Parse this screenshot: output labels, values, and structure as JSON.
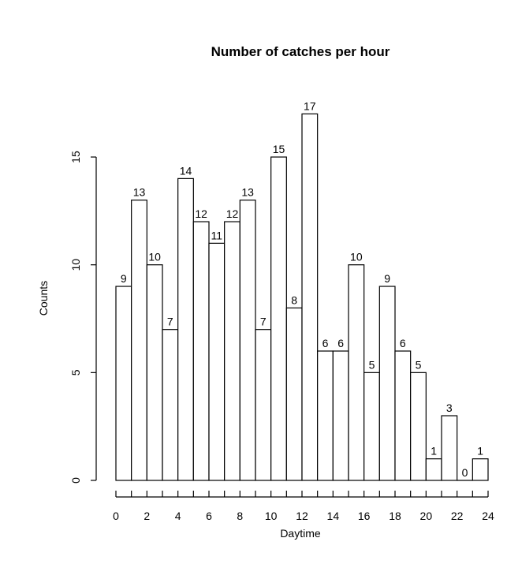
{
  "chart_data": {
    "type": "bar",
    "title": "Number of catches per hour",
    "xlabel": "Daytime",
    "ylabel": "Counts",
    "bins": [
      [
        0,
        1
      ],
      [
        1,
        2
      ],
      [
        2,
        3
      ],
      [
        3,
        4
      ],
      [
        4,
        5
      ],
      [
        5,
        6
      ],
      [
        6,
        7
      ],
      [
        7,
        8
      ],
      [
        8,
        9
      ],
      [
        9,
        10
      ],
      [
        10,
        11
      ],
      [
        11,
        12
      ],
      [
        12,
        13
      ],
      [
        13,
        14
      ],
      [
        14,
        15
      ],
      [
        15,
        16
      ],
      [
        16,
        17
      ],
      [
        17,
        18
      ],
      [
        18,
        19
      ],
      [
        19,
        20
      ],
      [
        20,
        21
      ],
      [
        21,
        22
      ],
      [
        22,
        23
      ],
      [
        23,
        24
      ]
    ],
    "values": [
      9,
      13,
      10,
      7,
      14,
      12,
      11,
      12,
      13,
      7,
      15,
      8,
      17,
      6,
      6,
      10,
      5,
      9,
      6,
      5,
      1,
      3,
      0,
      1
    ],
    "data_labels": [
      "9",
      "13",
      "10",
      "7",
      "14",
      "12",
      "11",
      "12",
      "13",
      "7",
      "15",
      "8",
      "17",
      "6",
      "6",
      "10",
      "5",
      "9",
      "6",
      "5",
      "1",
      "3",
      "0",
      "1"
    ],
    "xlim": [
      0,
      24
    ],
    "ylim": [
      0,
      17
    ],
    "x_tick_labels": [
      "0",
      "2",
      "4",
      "6",
      "8",
      "10",
      "12",
      "14",
      "16",
      "18",
      "20",
      "22",
      "24"
    ],
    "y_tick_labels": [
      "0",
      "5",
      "10",
      "15"
    ],
    "grid": false,
    "legend": "none"
  }
}
